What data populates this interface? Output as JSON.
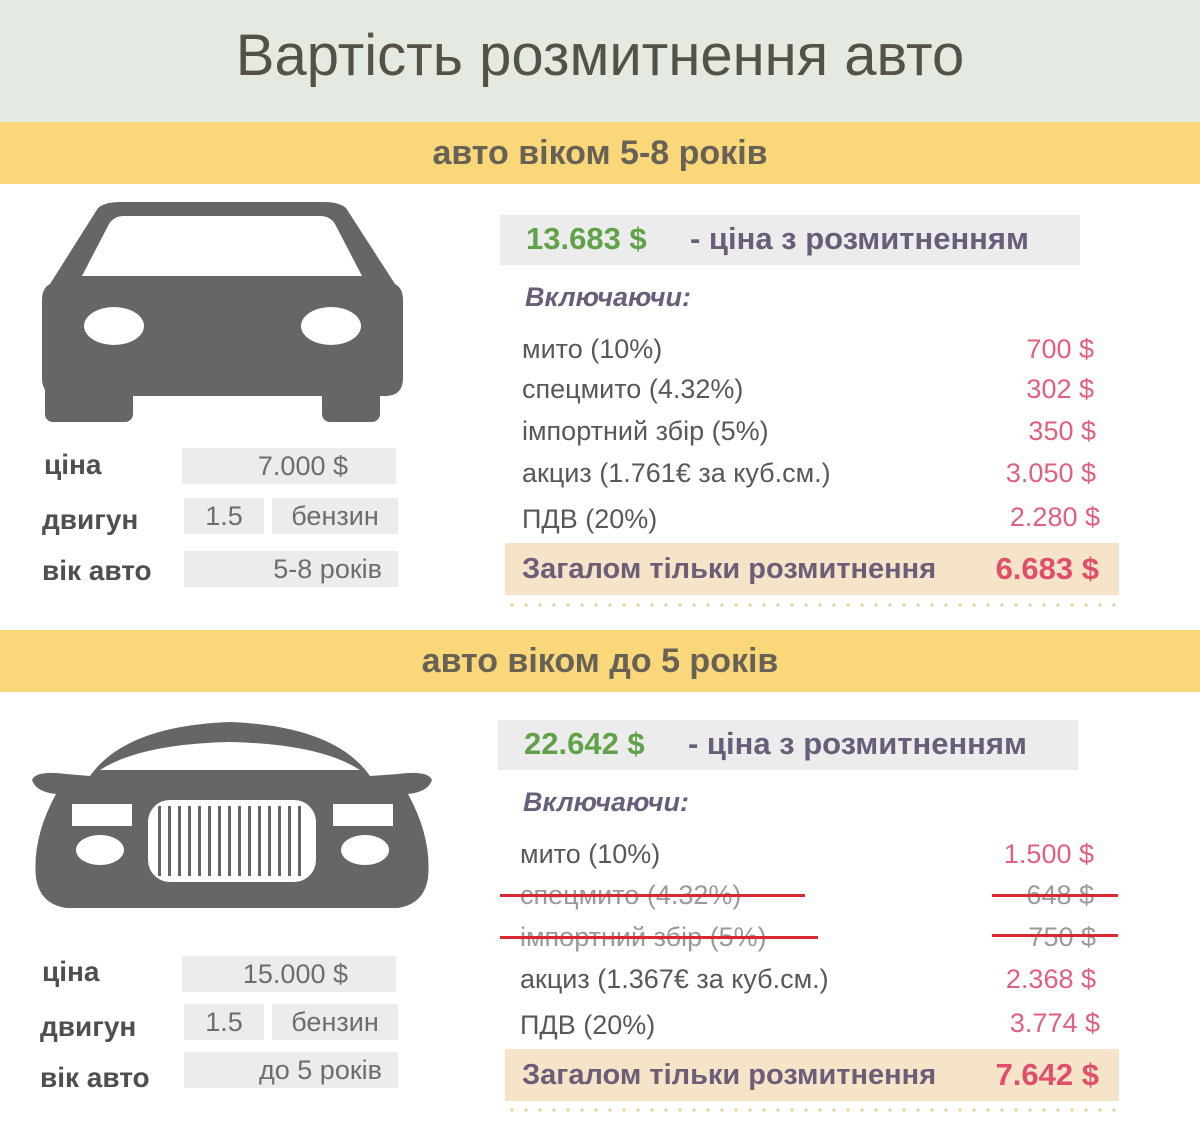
{
  "title": "Вартість розмитнення авто",
  "colors": {
    "header_bg": "#e4eae2",
    "band_bg": "#fad87a",
    "green_price": "#60a149",
    "pink_value": "#e0607e",
    "total_bg": "#f6e4c9",
    "strike": "#d9282f"
  },
  "sections": [
    {
      "heading": "авто віком 5-8 років",
      "car_icon": "sedan-front-icon",
      "params": {
        "price_label": "ціна",
        "price_value": "7.000 $",
        "engine_label": "двигун",
        "engine_volume": "1.5",
        "engine_fuel": "бензин",
        "age_label": "вік авто",
        "age_value": "5-8 років"
      },
      "total_price": "13.683 $",
      "total_price_text": "- ціна з розмитненням",
      "including": "Включаючи:",
      "items": [
        {
          "name": "мито (10%)",
          "value": "700 $",
          "struck": false
        },
        {
          "name": "спецмито (4.32%)",
          "value": "302 $",
          "struck": false
        },
        {
          "name": "імпортний збір (5%)",
          "value": "350 $",
          "struck": false
        },
        {
          "name": "акциз (1.761€ за куб.см.)",
          "value": "3.050 $",
          "struck": false
        },
        {
          "name": "ПДВ (20%)",
          "value": "2.280 $",
          "struck": false
        }
      ],
      "customs_total_label": "Загалом тільки розмитнення",
      "customs_total_value": "6.683 $"
    },
    {
      "heading": "авто віком до 5 років",
      "car_icon": "luxury-car-front-icon",
      "params": {
        "price_label": "ціна",
        "price_value": "15.000 $",
        "engine_label": "двигун",
        "engine_volume": "1.5",
        "engine_fuel": "бензин",
        "age_label": "вік авто",
        "age_value": "до 5 років"
      },
      "total_price": "22.642 $",
      "total_price_text": "- ціна з розмитненням",
      "including": "Включаючи:",
      "items": [
        {
          "name": "мито (10%)",
          "value": "1.500 $",
          "struck": false
        },
        {
          "name": "спецмито (4.32%)",
          "value": "648 $",
          "struck": true
        },
        {
          "name": "імпортний збір (5%)",
          "value": "750 $",
          "struck": true
        },
        {
          "name": "акциз (1.367€ за куб.см.)",
          "value": "2.368 $",
          "struck": false
        },
        {
          "name": "ПДВ (20%)",
          "value": "3.774 $",
          "struck": false
        }
      ],
      "customs_total_label": "Загалом тільки розмитнення",
      "customs_total_value": "7.642 $"
    }
  ]
}
